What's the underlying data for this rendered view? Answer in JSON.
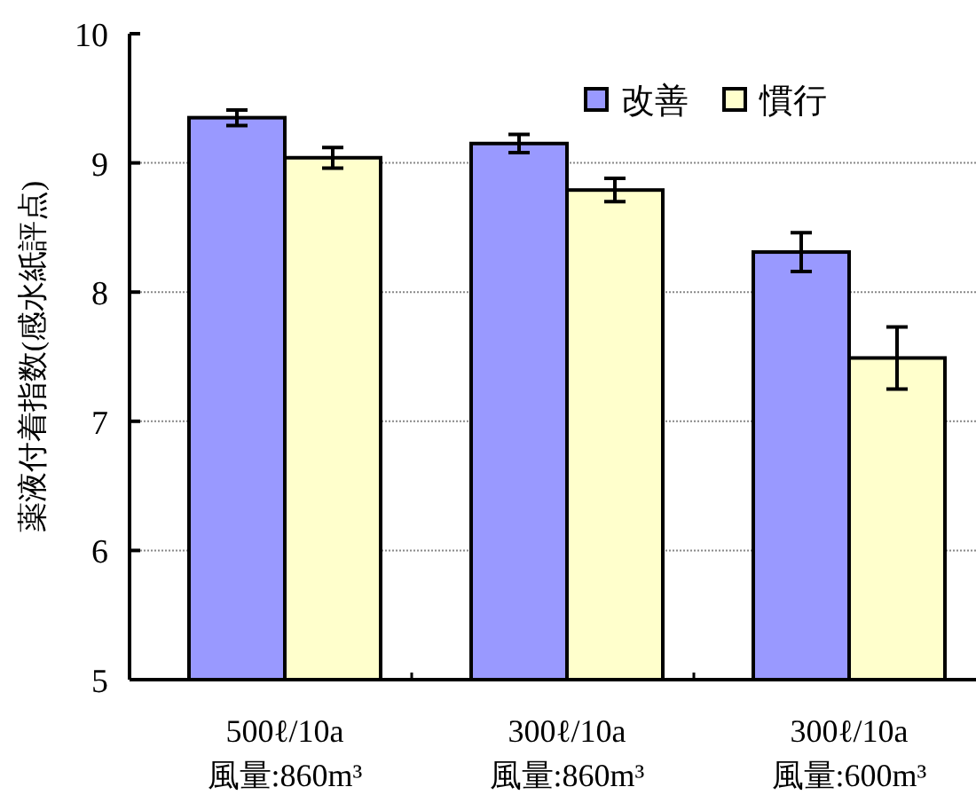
{
  "chart_data": {
    "type": "bar",
    "ylabel": "薬液付着指数(感水紙評点)",
    "categories": [
      "500ℓ/10a\n風量:860m³",
      "300ℓ/10a\n風量:860m³",
      "300ℓ/10a\n風量:600m³"
    ],
    "series": [
      {
        "name": "改善",
        "color": "#9999ff",
        "values": [
          9.35,
          9.15,
          8.31
        ],
        "errors": [
          0.06,
          0.07,
          0.15
        ]
      },
      {
        "name": "慣行",
        "color": "#ffffcc",
        "values": [
          9.04,
          8.79,
          7.49
        ],
        "errors": [
          0.08,
          0.09,
          0.24
        ]
      }
    ],
    "ylim": [
      5,
      10
    ],
    "yticks": [
      5,
      6,
      7,
      8,
      9,
      10
    ],
    "grid": "y",
    "legend": "top right"
  }
}
